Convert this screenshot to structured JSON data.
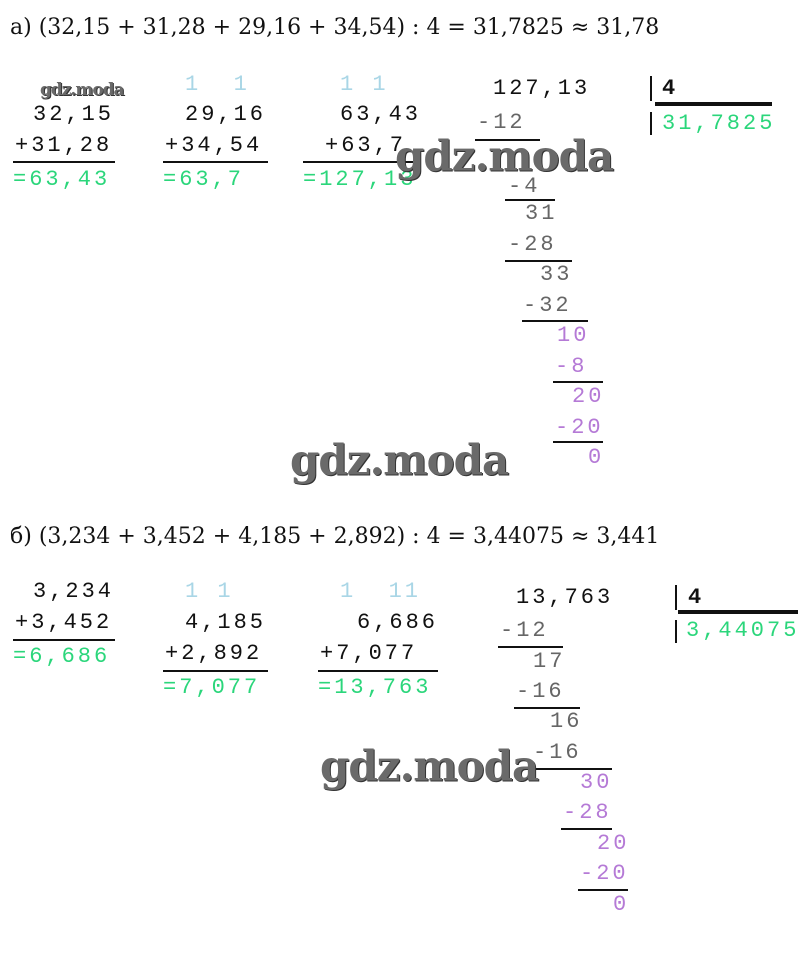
{
  "part_a": {
    "expression": "а) (32,15 + 31,28 + 29,16 + 34,54) : 4 = 31,7825 ≈ 31,78",
    "columns": [
      {
        "carry": "",
        "top": "32,15",
        "bottom": "+31,28",
        "result": "=63,43"
      },
      {
        "carry": "1  1",
        "top": "29,16",
        "bottom": "+34,54",
        "result": "=63,7"
      },
      {
        "carry": "1 1",
        "top": "63,43",
        "bottom": "+63,7",
        "result": "=127,13"
      }
    ],
    "division": {
      "dividend": "127,13",
      "divisor": "4",
      "quotient": "31,7825",
      "steps": [
        "-12",
        "-4",
        "31",
        "-28",
        "33",
        "-32",
        "10",
        "-8",
        "20",
        "-20",
        "0"
      ]
    }
  },
  "part_b": {
    "expression": "б) (3,234 + 3,452 + 4,185 + 2,892) : 4 = 3,44075 ≈ 3,441",
    "columns": [
      {
        "carry": "",
        "top": "3,234",
        "bottom": "+3,452",
        "result": "=6,686"
      },
      {
        "carry": "1 1",
        "top": "4,185",
        "bottom": "+2,892",
        "result": "=7,077"
      },
      {
        "carry": "1  11",
        "top": "6,686",
        "bottom": "+7,077",
        "result": "=13,763"
      }
    ],
    "division": {
      "dividend": "13,763",
      "divisor": "4",
      "quotient": "3,44075",
      "steps": [
        "-12",
        "17",
        "-16",
        "16",
        "-16",
        "30",
        "-28",
        "20",
        "-20",
        "0"
      ]
    }
  },
  "watermark": "gdz.moda",
  "colors": {
    "result": "#2bd67b",
    "carry": "#a9d6e6",
    "remainder": "#b57ad6",
    "text": "#111111"
  }
}
